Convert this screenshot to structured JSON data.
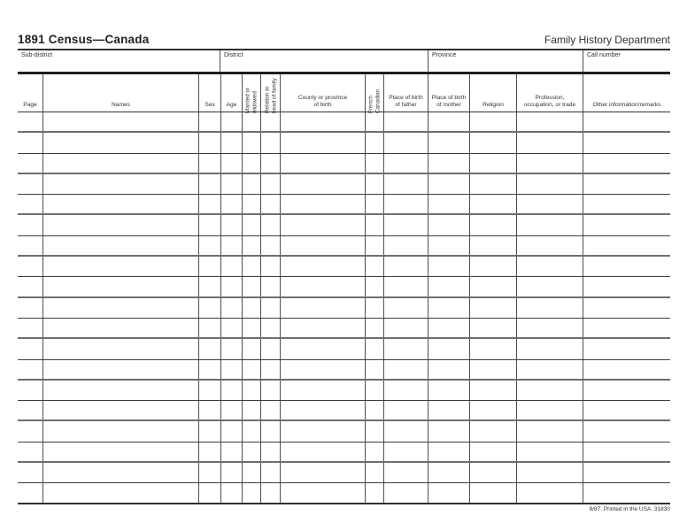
{
  "form": {
    "title": "1891 Census—Canada",
    "department": "Family History Department",
    "footer_note": "8/87. Printed in the USA. 31830"
  },
  "colors": {
    "paper": "#ffffff",
    "ink": "#2b2b2b",
    "rule_light": "#3d3d3d",
    "rule_heavy": "#6e6e6e"
  },
  "info_fields": [
    {
      "key": "sub-district",
      "label": "Sub-district",
      "value": ""
    },
    {
      "key": "district",
      "label": "District",
      "value": ""
    },
    {
      "key": "province",
      "label": "Province",
      "value": ""
    },
    {
      "key": "call-number",
      "label": "Call number",
      "value": ""
    }
  ],
  "table": {
    "row_count": 19,
    "columns": [
      {
        "key": "page",
        "label": "Page",
        "orientation": "horizontal"
      },
      {
        "key": "names",
        "label": "Names",
        "orientation": "horizontal"
      },
      {
        "key": "sex",
        "label": "Sex",
        "orientation": "horizontal"
      },
      {
        "key": "age",
        "label": "Age",
        "orientation": "horizontal"
      },
      {
        "key": "married-or-widowed",
        "label": "Married or\nwidowed",
        "orientation": "vertical"
      },
      {
        "key": "relation-to-head-of-family",
        "label": "Relation to\nhead of family",
        "orientation": "vertical"
      },
      {
        "key": "county-or-province-of-birth",
        "label": "County or province\nof birth",
        "orientation": "horizontal"
      },
      {
        "key": "french-canadian",
        "label": "French\nCanadian",
        "orientation": "vertical"
      },
      {
        "key": "place-of-birth-of-father",
        "label": "Place of birth\nof father",
        "orientation": "horizontal"
      },
      {
        "key": "place-of-birth-of-mother",
        "label": "Place of birth\nof mother",
        "orientation": "horizontal"
      },
      {
        "key": "religion",
        "label": "Religion",
        "orientation": "horizontal"
      },
      {
        "key": "profession-occupation-or-trade",
        "label": "Profession,\noccupation, or trade",
        "orientation": "horizontal"
      },
      {
        "key": "other-information-remarks",
        "label": "Other information/remarks",
        "orientation": "horizontal"
      }
    ]
  }
}
